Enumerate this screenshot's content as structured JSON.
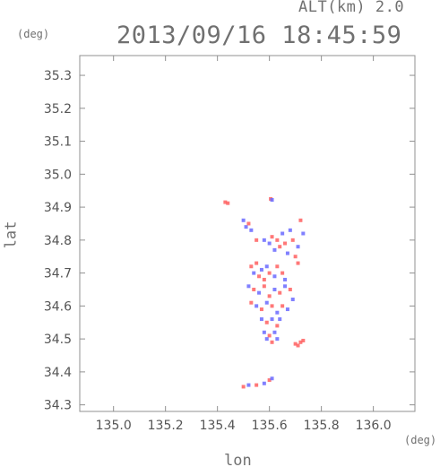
{
  "header": {
    "altitude_label": "ALT(km) 2.0",
    "timestamp": "2013/09/16 18:45:59",
    "y_unit": "(deg)",
    "x_unit": "(deg)"
  },
  "chart_data": {
    "type": "scatter",
    "title": "2013/09/16 18:45:59",
    "subtitle": "ALT(km) 2.0",
    "xlabel": "lon",
    "ylabel": "lat",
    "xunit": "(deg)",
    "yunit": "(deg)",
    "xlim": [
      134.87,
      136.16
    ],
    "ylim": [
      34.28,
      35.36
    ],
    "xticks": [
      135.0,
      135.2,
      135.4,
      135.6,
      135.8,
      136.0
    ],
    "xtick_labels": [
      "135.0",
      "135.2",
      "135.4",
      "135.6",
      "135.8",
      "136.0"
    ],
    "yticks": [
      34.3,
      34.4,
      34.5,
      34.6,
      34.7,
      34.8,
      34.9,
      35.0,
      35.1,
      35.2,
      35.3
    ],
    "ytick_labels": [
      "34.3",
      "34.4",
      "34.5",
      "34.6",
      "34.7",
      "34.8",
      "34.9",
      "35.0",
      "35.1",
      "35.2",
      "35.3"
    ],
    "grid": false,
    "colors": {
      "positive": "#ff6060",
      "negative": "#6a6aff",
      "frame": "#909090",
      "text": "#707070"
    },
    "series": [
      {
        "values": [
          {
            "lon": 135.43,
            "lat": 34.915,
            "v": 1
          },
          {
            "lon": 135.44,
            "lat": 34.912,
            "v": 1
          },
          {
            "lon": 135.605,
            "lat": 34.925,
            "v": 1
          },
          {
            "lon": 135.61,
            "lat": 34.922,
            "v": -1
          },
          {
            "lon": 135.5,
            "lat": 34.86,
            "v": -1
          },
          {
            "lon": 135.51,
            "lat": 34.84,
            "v": -1
          },
          {
            "lon": 135.52,
            "lat": 34.85,
            "v": 1
          },
          {
            "lon": 135.53,
            "lat": 34.83,
            "v": -1
          },
          {
            "lon": 135.55,
            "lat": 34.8,
            "v": 1
          },
          {
            "lon": 135.58,
            "lat": 34.8,
            "v": -1
          },
          {
            "lon": 135.6,
            "lat": 34.79,
            "v": -1
          },
          {
            "lon": 135.61,
            "lat": 34.81,
            "v": 1
          },
          {
            "lon": 135.62,
            "lat": 34.77,
            "v": -1
          },
          {
            "lon": 135.63,
            "lat": 34.8,
            "v": 1
          },
          {
            "lon": 135.64,
            "lat": 34.78,
            "v": 1
          },
          {
            "lon": 135.65,
            "lat": 34.82,
            "v": -1
          },
          {
            "lon": 135.66,
            "lat": 34.79,
            "v": 1
          },
          {
            "lon": 135.67,
            "lat": 34.76,
            "v": -1
          },
          {
            "lon": 135.68,
            "lat": 34.83,
            "v": -1
          },
          {
            "lon": 135.69,
            "lat": 34.8,
            "v": 1
          },
          {
            "lon": 135.7,
            "lat": 34.75,
            "v": 1
          },
          {
            "lon": 135.71,
            "lat": 34.78,
            "v": -1
          },
          {
            "lon": 135.72,
            "lat": 34.86,
            "v": 1
          },
          {
            "lon": 135.73,
            "lat": 34.82,
            "v": -1
          },
          {
            "lon": 135.71,
            "lat": 34.73,
            "v": 1
          },
          {
            "lon": 135.53,
            "lat": 34.72,
            "v": 1
          },
          {
            "lon": 135.54,
            "lat": 34.7,
            "v": -1
          },
          {
            "lon": 135.55,
            "lat": 34.73,
            "v": 1
          },
          {
            "lon": 135.56,
            "lat": 34.69,
            "v": 1
          },
          {
            "lon": 135.57,
            "lat": 34.71,
            "v": -1
          },
          {
            "lon": 135.58,
            "lat": 34.68,
            "v": 1
          },
          {
            "lon": 135.59,
            "lat": 34.72,
            "v": -1
          },
          {
            "lon": 135.6,
            "lat": 34.7,
            "v": 1
          },
          {
            "lon": 135.62,
            "lat": 34.69,
            "v": -1
          },
          {
            "lon": 135.63,
            "lat": 34.72,
            "v": 1
          },
          {
            "lon": 135.65,
            "lat": 34.7,
            "v": 1
          },
          {
            "lon": 135.66,
            "lat": 34.68,
            "v": -1
          },
          {
            "lon": 135.52,
            "lat": 34.66,
            "v": -1
          },
          {
            "lon": 135.54,
            "lat": 34.65,
            "v": 1
          },
          {
            "lon": 135.56,
            "lat": 34.64,
            "v": -1
          },
          {
            "lon": 135.58,
            "lat": 34.66,
            "v": 1
          },
          {
            "lon": 135.6,
            "lat": 34.63,
            "v": 1
          },
          {
            "lon": 135.62,
            "lat": 34.65,
            "v": -1
          },
          {
            "lon": 135.64,
            "lat": 34.64,
            "v": 1
          },
          {
            "lon": 135.66,
            "lat": 34.66,
            "v": -1
          },
          {
            "lon": 135.68,
            "lat": 34.65,
            "v": 1
          },
          {
            "lon": 135.69,
            "lat": 34.62,
            "v": -1
          },
          {
            "lon": 135.53,
            "lat": 34.61,
            "v": 1
          },
          {
            "lon": 135.55,
            "lat": 34.6,
            "v": -1
          },
          {
            "lon": 135.57,
            "lat": 34.59,
            "v": 1
          },
          {
            "lon": 135.59,
            "lat": 34.61,
            "v": -1
          },
          {
            "lon": 135.61,
            "lat": 34.6,
            "v": 1
          },
          {
            "lon": 135.63,
            "lat": 34.58,
            "v": -1
          },
          {
            "lon": 135.65,
            "lat": 34.6,
            "v": 1
          },
          {
            "lon": 135.67,
            "lat": 34.59,
            "v": -1
          },
          {
            "lon": 135.57,
            "lat": 34.56,
            "v": -1
          },
          {
            "lon": 135.59,
            "lat": 34.55,
            "v": 1
          },
          {
            "lon": 135.61,
            "lat": 34.56,
            "v": -1
          },
          {
            "lon": 135.63,
            "lat": 34.54,
            "v": 1
          },
          {
            "lon": 135.64,
            "lat": 34.56,
            "v": -1
          },
          {
            "lon": 135.58,
            "lat": 34.52,
            "v": -1
          },
          {
            "lon": 135.6,
            "lat": 34.51,
            "v": 1
          },
          {
            "lon": 135.62,
            "lat": 34.52,
            "v": -1
          },
          {
            "lon": 135.59,
            "lat": 34.5,
            "v": -1
          },
          {
            "lon": 135.61,
            "lat": 34.49,
            "v": 1
          },
          {
            "lon": 135.63,
            "lat": 34.5,
            "v": -1
          },
          {
            "lon": 135.7,
            "lat": 34.485,
            "v": 1
          },
          {
            "lon": 135.71,
            "lat": 34.48,
            "v": 1
          },
          {
            "lon": 135.72,
            "lat": 34.49,
            "v": 1
          },
          {
            "lon": 135.73,
            "lat": 34.495,
            "v": 1
          },
          {
            "lon": 135.52,
            "lat": 34.36,
            "v": -1
          },
          {
            "lon": 135.55,
            "lat": 34.36,
            "v": 1
          },
          {
            "lon": 135.58,
            "lat": 34.365,
            "v": -1
          },
          {
            "lon": 135.6,
            "lat": 34.375,
            "v": 1
          },
          {
            "lon": 135.61,
            "lat": 34.38,
            "v": -1
          },
          {
            "lon": 135.5,
            "lat": 34.355,
            "v": 1
          }
        ]
      }
    ]
  }
}
